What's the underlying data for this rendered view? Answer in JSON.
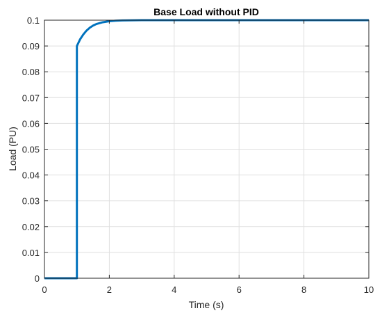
{
  "chart_data": {
    "type": "line",
    "title": "Base Load without PID",
    "xlabel": "Time (s)",
    "ylabel": "Load (PU)",
    "xlim": [
      0,
      10
    ],
    "ylim": [
      0,
      0.1
    ],
    "x_ticks": [
      0,
      2,
      4,
      6,
      8,
      10
    ],
    "x_tick_labels": [
      "0",
      "2",
      "4",
      "6",
      "8",
      "10"
    ],
    "y_ticks": [
      0,
      0.01,
      0.02,
      0.03,
      0.04,
      0.05,
      0.06,
      0.07,
      0.08,
      0.09,
      0.1
    ],
    "y_tick_labels": [
      "0",
      "0.01",
      "0.02",
      "0.03",
      "0.04",
      "0.05",
      "0.06",
      "0.07",
      "0.08",
      "0.09",
      "0.1"
    ],
    "grid": true,
    "line_color": "#0072BD",
    "series": [
      {
        "x": [
          0,
          0.5,
          0.99,
          1.0,
          1.0,
          1.1,
          1.2,
          1.3,
          1.4,
          1.5,
          1.6,
          1.8,
          2.0,
          2.2,
          2.4,
          2.6,
          3.0,
          3.5,
          4.0,
          5.0,
          6.0,
          7.0,
          8.0,
          9.0,
          10.0
        ],
        "y": [
          0,
          0,
          0,
          0,
          0.09,
          0.0926,
          0.0945,
          0.096,
          0.0971,
          0.0979,
          0.0985,
          0.0992,
          0.0996,
          0.0998,
          0.0999,
          0.09995,
          0.1,
          0.1,
          0.1,
          0.1,
          0.1,
          0.1,
          0.1,
          0.1,
          0.1
        ]
      }
    ]
  }
}
